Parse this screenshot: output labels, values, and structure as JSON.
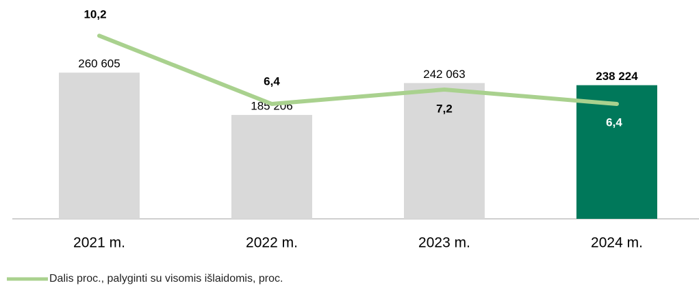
{
  "chart_data": {
    "type": "bar-line",
    "categories": [
      "2021 m.",
      "2022 m.",
      "2023 m.",
      "2024 m."
    ],
    "series": [
      {
        "type": "bar",
        "colors": [
          "#d9d9d9",
          "#d9d9d9",
          "#d9d9d9",
          "#00785a"
        ],
        "values": [
          260605,
          185206,
          242063,
          238224
        ],
        "value_labels": [
          "260 605",
          "185 206",
          "242 063",
          "238 224"
        ]
      },
      {
        "type": "line",
        "name": "Dalis proc., palyginti su visomis išlaidomis, proc.",
        "color": "#a9d18e",
        "axis": "y2",
        "values": [
          10.2,
          6.4,
          7.2,
          6.4
        ],
        "value_labels": [
          "10,2",
          "6,4",
          "7,2",
          "6,4"
        ]
      }
    ],
    "ylim": [
      0,
      384000
    ],
    "y2lim": [
      0,
      12
    ],
    "legend": "bottom-left"
  }
}
